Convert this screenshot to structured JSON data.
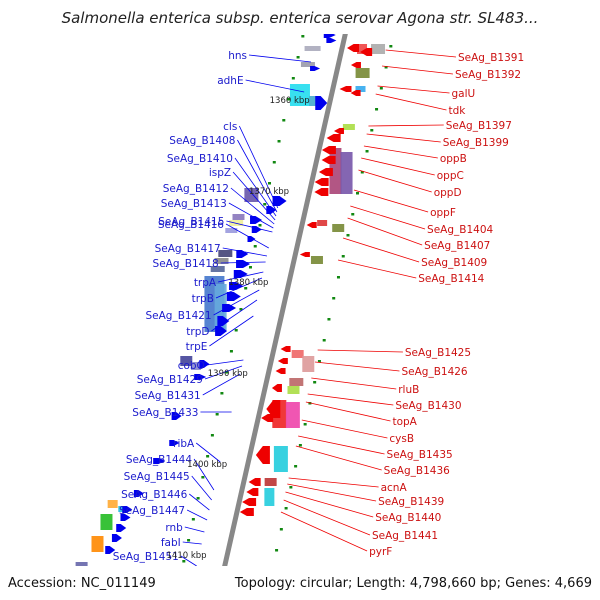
{
  "title": "Salmonella enterica subsp. enterica serovar Agona str. SL483...",
  "footer": {
    "accession": "Accession: NC_011149",
    "summary": "Topology: circular; Length: 4,798,660 bp; Genes: 4,669"
  },
  "backbone": {
    "color": "#888888"
  },
  "scale_labels": [
    {
      "text": "1350 kbp",
      "kbp": 1350
    },
    {
      "text": "1360 kbp",
      "kbp": 1360
    },
    {
      "text": "1370 kbp",
      "kbp": 1370
    },
    {
      "text": "1380 kbp",
      "kbp": 1380
    },
    {
      "text": "1390 kbp",
      "kbp": 1390
    },
    {
      "text": "1400 kbp",
      "kbp": 1400
    },
    {
      "text": "1410 kbp",
      "kbp": 1410
    }
  ],
  "strand_colors": {
    "forward": "#0000ee",
    "reverse": "#ee0000"
  },
  "genes_left": [
    "hns",
    "adhE",
    "cls",
    "SeAg_B1408",
    "SeAg_B1410",
    "ispZ",
    "SeAg_B1412",
    "SeAg_B1413",
    "SeAg_B1416",
    "SeAg_B1415",
    "SeAg_B1417",
    "SeAg_B1418",
    "trpA",
    "trpB",
    "SeAg_B1421",
    "trpD",
    "trpE",
    "cobO",
    "SeAg_B1429",
    "SeAg_B1431",
    "SeAg_B1433",
    "ribA",
    "SeAg_B1444",
    "SeAg_B1445",
    "SeAg_B1446",
    "SeAg_B1447",
    "rnb",
    "fabI",
    "SeAg_B1451"
  ],
  "genes_right": [
    "SeAg_B1391",
    "SeAg_B1392",
    "galU",
    "tdk",
    "SeAg_B1397",
    "SeAg_B1399",
    "oppB",
    "oppC",
    "oppD",
    "oppF",
    "SeAg_B1404",
    "SeAg_B1407",
    "SeAg_B1409",
    "SeAg_B1414",
    "SeAg_B1425",
    "SeAg_B1426",
    "rluB",
    "SeAg_B1430",
    "topA",
    "cysB",
    "SeAg_B1435",
    "SeAg_B1436",
    "acnA",
    "SeAg_B1439",
    "SeAg_B1440",
    "SeAg_B1441",
    "pyrF"
  ]
}
